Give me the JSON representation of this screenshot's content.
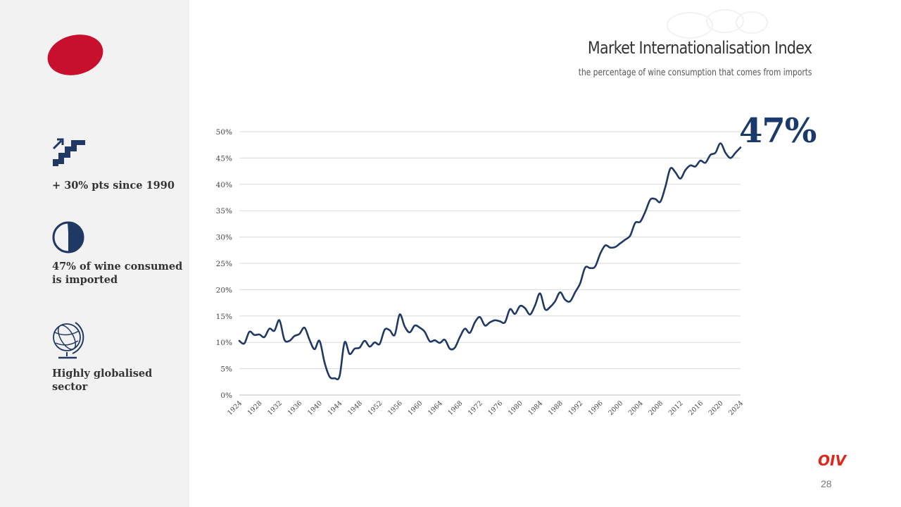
{
  "header": {
    "title": "Market Internationalisation Index",
    "subtitle": "the percentage of wine consumption that comes from imports"
  },
  "highlight": {
    "value": "47%"
  },
  "sidebar": {
    "stats": [
      {
        "icon": "stairs-up-icon",
        "text": "+ 30% pts since 1990"
      },
      {
        "icon": "pie-half-icon",
        "text_line1": "47% of wine consumed",
        "text_line2": "is imported"
      },
      {
        "icon": "globe-icon",
        "text": "Highly globalised sector"
      }
    ]
  },
  "footer": {
    "brand": "OIV",
    "page_number": "28"
  },
  "colors": {
    "accent_red": "#c8102e",
    "line": "#1f3864",
    "brand_red": "#e1251b"
  },
  "chart_data": {
    "type": "line",
    "title": "Market Internationalisation Index",
    "xlabel": "",
    "ylabel": "",
    "ylim": [
      0,
      50
    ],
    "xlim": [
      1924,
      2024
    ],
    "grid": true,
    "y_ticks": [
      "0%",
      "5%",
      "10%",
      "15%",
      "20%",
      "25%",
      "30%",
      "35%",
      "40%",
      "45%",
      "50%"
    ],
    "x_ticks": [
      "1924",
      "1928",
      "1932",
      "1936",
      "1940",
      "1944",
      "1948",
      "1952",
      "1956",
      "1960",
      "1964",
      "1968",
      "1972",
      "1976",
      "1980",
      "1984",
      "1988",
      "1992",
      "1996",
      "2000",
      "2004",
      "2008",
      "2012",
      "2016",
      "2020",
      "2024"
    ],
    "series": [
      {
        "name": "Market Internationalisation Index",
        "x": [
          1924,
          1925,
          1926,
          1927,
          1928,
          1929,
          1930,
          1931,
          1932,
          1933,
          1934,
          1935,
          1936,
          1937,
          1938,
          1939,
          1940,
          1941,
          1942,
          1943,
          1944,
          1945,
          1946,
          1947,
          1948,
          1949,
          1950,
          1951,
          1952,
          1953,
          1954,
          1955,
          1956,
          1957,
          1958,
          1959,
          1960,
          1961,
          1962,
          1963,
          1964,
          1965,
          1966,
          1967,
          1968,
          1969,
          1970,
          1971,
          1972,
          1973,
          1974,
          1975,
          1976,
          1977,
          1978,
          1979,
          1980,
          1981,
          1982,
          1983,
          1984,
          1985,
          1986,
          1987,
          1988,
          1989,
          1990,
          1991,
          1992,
          1993,
          1994,
          1995,
          1996,
          1997,
          1998,
          1999,
          2000,
          2001,
          2002,
          2003,
          2004,
          2005,
          2006,
          2007,
          2008,
          2009,
          2010,
          2011,
          2012,
          2013,
          2014,
          2015,
          2016,
          2017,
          2018,
          2019,
          2020,
          2021,
          2022,
          2023,
          2024
        ],
        "y": [
          10.3,
          9.8,
          12.0,
          11.4,
          11.5,
          11.0,
          12.6,
          12.2,
          14.2,
          10.5,
          10.3,
          11.2,
          11.6,
          12.8,
          10.5,
          8.7,
          10.3,
          6.2,
          3.5,
          3.2,
          3.6,
          10.0,
          7.8,
          8.8,
          9.0,
          10.3,
          9.2,
          10.0,
          9.7,
          12.4,
          12.3,
          11.4,
          15.3,
          13.0,
          11.9,
          13.2,
          12.8,
          12.0,
          10.2,
          10.4,
          9.9,
          10.5,
          8.8,
          9.0,
          11.0,
          12.6,
          11.8,
          13.8,
          14.8,
          13.2,
          13.8,
          14.2,
          14.0,
          13.8,
          16.3,
          15.4,
          16.9,
          16.5,
          15.3,
          17.0,
          19.3,
          16.3,
          16.7,
          17.8,
          19.5,
          18.1,
          17.8,
          19.5,
          21.2,
          24.2,
          24.1,
          24.4,
          26.8,
          28.4,
          28.0,
          28.1,
          28.8,
          29.5,
          30.3,
          32.7,
          32.9,
          34.8,
          37.1,
          37.2,
          36.7,
          39.5,
          43.0,
          42.3,
          41.1,
          42.7,
          43.6,
          43.4,
          44.5,
          44.1,
          45.6,
          46.0,
          47.8,
          46.0,
          45.0,
          46.0,
          47.0
        ]
      }
    ]
  }
}
